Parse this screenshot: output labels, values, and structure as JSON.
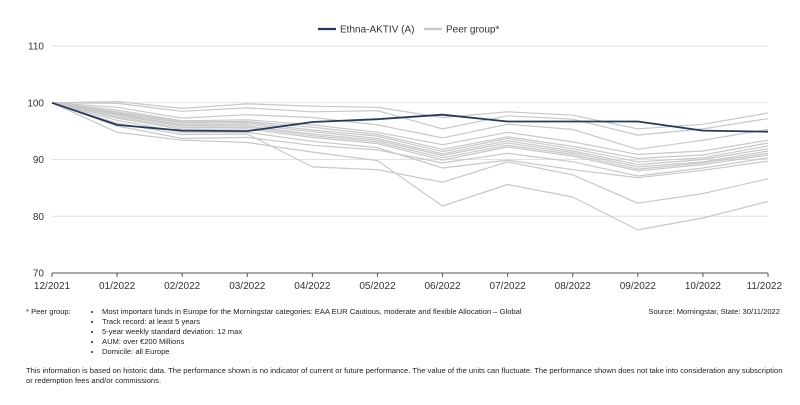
{
  "legend": {
    "main_label": "Ethna-AKTIV (A)",
    "peer_label": "Peer group*"
  },
  "colors": {
    "main": "#243b5e",
    "peer": "#c8c8c8",
    "grid": "#e2e2e2",
    "axis": "#555555"
  },
  "chart_data": {
    "type": "line",
    "categories": [
      "12/2021",
      "01/2022",
      "02/2022",
      "03/2022",
      "04/2022",
      "05/2022",
      "06/2022",
      "07/2022",
      "08/2022",
      "09/2022",
      "10/2022",
      "11/2022"
    ],
    "ylim": [
      70,
      110
    ],
    "yticks": [
      70,
      80,
      90,
      100,
      110
    ],
    "grid": "horizontal",
    "legend_position": "top-center",
    "series": [
      {
        "name": "Ethna-AKTIV (A)",
        "values": [
          100,
          96.1,
          95.1,
          95.0,
          96.6,
          97.1,
          97.9,
          96.7,
          96.7,
          96.7,
          95.1,
          94.9
        ]
      },
      {
        "values": [
          100,
          100.2,
          99.0,
          99.8,
          99.4,
          99.2,
          97.4,
          98.4,
          97.8,
          95.4,
          96.2,
          98.2
        ]
      },
      {
        "values": [
          100,
          99.9,
          98.5,
          99.1,
          98.4,
          98.6,
          95.4,
          97.7,
          97.1,
          94.3,
          95.4,
          97.2
        ]
      },
      {
        "values": [
          100,
          99.2,
          97.3,
          97.9,
          97.4,
          96.1,
          93.8,
          96.2,
          95.3,
          91.8,
          93.4,
          95.3
        ]
      },
      {
        "values": [
          100,
          98.7,
          96.8,
          97.0,
          96.1,
          94.8,
          92.6,
          94.8,
          93.1,
          90.9,
          91.5,
          93.4
        ]
      },
      {
        "values": [
          100,
          98.4,
          96.6,
          96.7,
          95.7,
          94.4,
          91.8,
          94.0,
          92.3,
          90.2,
          90.8,
          92.9
        ]
      },
      {
        "values": [
          100,
          98.2,
          96.4,
          96.5,
          95.2,
          94.1,
          91.4,
          93.7,
          91.9,
          89.6,
          90.3,
          92.4
        ]
      },
      {
        "values": [
          100,
          98.0,
          96.1,
          96.2,
          94.9,
          93.7,
          91.0,
          93.3,
          91.5,
          89.1,
          90.0,
          91.9
        ]
      },
      {
        "values": [
          100,
          97.8,
          95.9,
          95.9,
          94.5,
          93.4,
          90.7,
          92.9,
          91.2,
          88.7,
          89.6,
          91.5
        ]
      },
      {
        "values": [
          100,
          97.5,
          95.6,
          95.7,
          94.2,
          93.1,
          90.3,
          92.5,
          90.9,
          88.3,
          89.4,
          91.1
        ]
      },
      {
        "values": [
          100,
          97.3,
          95.3,
          95.4,
          93.9,
          92.8,
          89.9,
          92.2,
          90.6,
          88.0,
          89.1,
          90.8
        ]
      },
      {
        "values": [
          100,
          96.9,
          94.8,
          94.8,
          93.2,
          92.1,
          88.5,
          89.9,
          88.2,
          86.8,
          88.1,
          89.7
        ]
      },
      {
        "values": [
          100,
          95.9,
          93.7,
          93.9,
          92.5,
          91.7,
          89.4,
          91.1,
          89.6,
          87.1,
          88.5,
          90.3
        ]
      },
      {
        "values": [
          100,
          96.4,
          94.4,
          94.5,
          88.7,
          88.2,
          86.0,
          89.6,
          87.3,
          82.3,
          84.0,
          86.6
        ]
      },
      {
        "values": [
          100,
          94.8,
          93.4,
          93.0,
          91.3,
          89.8,
          81.8,
          85.6,
          83.4,
          77.6,
          79.7,
          82.6
        ]
      }
    ]
  },
  "notes": {
    "peer_group_label": "* Peer group:",
    "peer_group_items": [
      "Most important funds in Europe for the Morningstar categories: EAA EUR Cautious, moderate and flexible Allocation – Global",
      "Track record: at least 5 years",
      "5-year weekly standard deviation: 12 max",
      "AUM: over €200 Millions",
      "Domicile: all Europe"
    ],
    "source": "Source: Morningstar, State: 30/11/2022",
    "disclaimer": "This information is based on historic data. The performance shown is no indicator of current or future performance. The value of the units can fluctuate. The performance shown does not take into consideration any subscription or redemption fees and/or commissions."
  }
}
